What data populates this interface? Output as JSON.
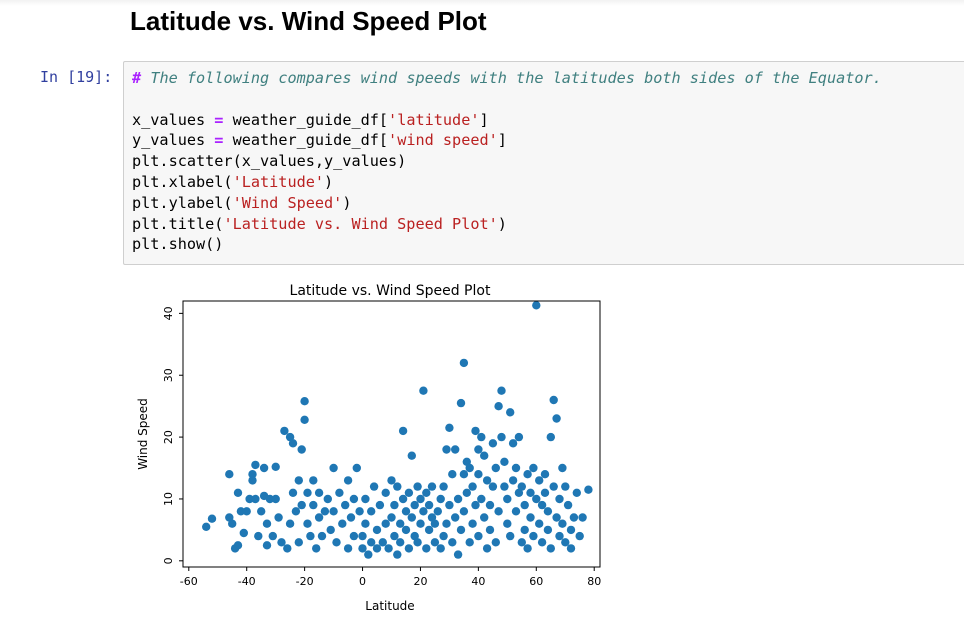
{
  "notebook": {
    "heading": "Latitude vs. Wind Speed Plot",
    "cell": {
      "prompt": "In [19]:",
      "comment_hash": "#",
      "comment_text": "The following compares wind speeds with the latitudes both sides of the Equator.",
      "lines": [
        {
          "a": "x_values ",
          "op": "=",
          "b": " weather_guide_df[",
          "s": "'latitude'",
          "c": "]"
        },
        {
          "a": "y_values ",
          "op": "=",
          "b": " weather_guide_df[",
          "s": "'wind speed'",
          "c": "]"
        },
        {
          "a": "plt.scatter(x_values,y_values)",
          "op": "",
          "b": "",
          "s": "",
          "c": ""
        },
        {
          "a": "plt.xlabel(",
          "op": "",
          "b": "",
          "s": "'Latitude'",
          "c": ")"
        },
        {
          "a": "plt.ylabel(",
          "op": "",
          "b": "",
          "s": "'Wind Speed'",
          "c": ")"
        },
        {
          "a": "plt.title(",
          "op": "",
          "b": "",
          "s": "'Latitude vs. Wind Speed Plot'",
          "c": ")"
        },
        {
          "a": "plt.show()",
          "op": "",
          "b": "",
          "s": "",
          "c": ""
        }
      ]
    }
  },
  "colors": {
    "point": "#1f77b4",
    "axis": "#000000"
  },
  "chart_data": {
    "type": "scatter",
    "title": "Latitude vs. Wind Speed Plot",
    "xlabel": "Latitude",
    "ylabel": "Wind Speed",
    "xlim": [
      -62,
      82
    ],
    "ylim": [
      -1,
      42
    ],
    "xticks": [
      -60,
      -40,
      -20,
      0,
      20,
      40,
      60,
      80
    ],
    "yticks": [
      0,
      10,
      20,
      30,
      40
    ],
    "grid": false,
    "series": [
      {
        "name": "",
        "points": [
          [
            -54,
            5.5
          ],
          [
            -52,
            6.8
          ],
          [
            -46,
            14
          ],
          [
            -46,
            7
          ],
          [
            -45,
            6
          ],
          [
            -44,
            2
          ],
          [
            -43,
            2.5
          ],
          [
            -43,
            11
          ],
          [
            -42,
            8
          ],
          [
            -41,
            4.5
          ],
          [
            -40,
            8
          ],
          [
            -39,
            10
          ],
          [
            -38,
            14
          ],
          [
            -38,
            13
          ],
          [
            -37,
            15.5
          ],
          [
            -37,
            10
          ],
          [
            -36,
            4
          ],
          [
            -35,
            8
          ],
          [
            -34,
            15
          ],
          [
            -34,
            10.5
          ],
          [
            -33,
            6
          ],
          [
            -33,
            2.5
          ],
          [
            -32,
            10
          ],
          [
            -31,
            4
          ],
          [
            -30,
            15.2
          ],
          [
            -30,
            10
          ],
          [
            -29,
            7
          ],
          [
            -28,
            3
          ],
          [
            -27,
            21
          ],
          [
            -26,
            2
          ],
          [
            -25,
            6
          ],
          [
            -25,
            20
          ],
          [
            -24,
            19
          ],
          [
            -24,
            11
          ],
          [
            -23,
            8
          ],
          [
            -22,
            13
          ],
          [
            -22,
            3
          ],
          [
            -21,
            18
          ],
          [
            -21,
            9
          ],
          [
            -20,
            25.8
          ],
          [
            -20,
            22.8
          ],
          [
            -19,
            6
          ],
          [
            -19,
            11
          ],
          [
            -18,
            4
          ],
          [
            -17,
            13
          ],
          [
            -17,
            9
          ],
          [
            -16,
            2
          ],
          [
            -15,
            7
          ],
          [
            -15,
            11
          ],
          [
            -14,
            4
          ],
          [
            -13,
            8
          ],
          [
            -12,
            10
          ],
          [
            -11,
            5
          ],
          [
            -10,
            15
          ],
          [
            -10,
            8
          ],
          [
            -9,
            3
          ],
          [
            -8,
            11
          ],
          [
            -7,
            6
          ],
          [
            -6,
            9
          ],
          [
            -5,
            13
          ],
          [
            -5,
            2
          ],
          [
            -4,
            7
          ],
          [
            -3,
            4
          ],
          [
            -3,
            10
          ],
          [
            -2,
            15
          ],
          [
            -1,
            8
          ],
          [
            0,
            4
          ],
          [
            0,
            2
          ],
          [
            1,
            6
          ],
          [
            1,
            10
          ],
          [
            2,
            1
          ],
          [
            3,
            3
          ],
          [
            3,
            8
          ],
          [
            4,
            12
          ],
          [
            5,
            5
          ],
          [
            5,
            2
          ],
          [
            6,
            9
          ],
          [
            7,
            3
          ],
          [
            8,
            6
          ],
          [
            8,
            11
          ],
          [
            9,
            2
          ],
          [
            10,
            7
          ],
          [
            10,
            13
          ],
          [
            11,
            4
          ],
          [
            11,
            9
          ],
          [
            12,
            12
          ],
          [
            12,
            1
          ],
          [
            13,
            6
          ],
          [
            13,
            3
          ],
          [
            14,
            10
          ],
          [
            14,
            21
          ],
          [
            15,
            5
          ],
          [
            15,
            8
          ],
          [
            16,
            2
          ],
          [
            16,
            11
          ],
          [
            17,
            7
          ],
          [
            17,
            17
          ],
          [
            18,
            4
          ],
          [
            18,
            9
          ],
          [
            19,
            12
          ],
          [
            19,
            3
          ],
          [
            20,
            6
          ],
          [
            20,
            10
          ],
          [
            21,
            27.5
          ],
          [
            21,
            8
          ],
          [
            22,
            2
          ],
          [
            22,
            11
          ],
          [
            23,
            5
          ],
          [
            23,
            9
          ],
          [
            24,
            7
          ],
          [
            24,
            12
          ],
          [
            25,
            3
          ],
          [
            25,
            6
          ],
          [
            26,
            8
          ],
          [
            27,
            10
          ],
          [
            27,
            2
          ],
          [
            28,
            4
          ],
          [
            28,
            12
          ],
          [
            29,
            6
          ],
          [
            29,
            18
          ],
          [
            30,
            9
          ],
          [
            30,
            21.5
          ],
          [
            31,
            3
          ],
          [
            31,
            14
          ],
          [
            32,
            18
          ],
          [
            32,
            7
          ],
          [
            33,
            10
          ],
          [
            33,
            1
          ],
          [
            34,
            5
          ],
          [
            34,
            25.5
          ],
          [
            35,
            14
          ],
          [
            35,
            32
          ],
          [
            35,
            8
          ],
          [
            36,
            16
          ],
          [
            36,
            11
          ],
          [
            37,
            15
          ],
          [
            37,
            3
          ],
          [
            38,
            12
          ],
          [
            38,
            6
          ],
          [
            39,
            21
          ],
          [
            39,
            9
          ],
          [
            40,
            18
          ],
          [
            40,
            14
          ],
          [
            40,
            4
          ],
          [
            41,
            20
          ],
          [
            41,
            10
          ],
          [
            42,
            17
          ],
          [
            42,
            7
          ],
          [
            43,
            2
          ],
          [
            43,
            13
          ],
          [
            44,
            9
          ],
          [
            44,
            5
          ],
          [
            45,
            19
          ],
          [
            45,
            12
          ],
          [
            46,
            15
          ],
          [
            46,
            3
          ],
          [
            47,
            25
          ],
          [
            47,
            8
          ],
          [
            48,
            27.5
          ],
          [
            48,
            20
          ],
          [
            49,
            12
          ],
          [
            49,
            16
          ],
          [
            50,
            6
          ],
          [
            50,
            10
          ],
          [
            51,
            24
          ],
          [
            51,
            4
          ],
          [
            52,
            19
          ],
          [
            52,
            13
          ],
          [
            53,
            8
          ],
          [
            53,
            15
          ],
          [
            54,
            11
          ],
          [
            54,
            20
          ],
          [
            55,
            3
          ],
          [
            55,
            12
          ],
          [
            56,
            9
          ],
          [
            56,
            5
          ],
          [
            57,
            14
          ],
          [
            57,
            2
          ],
          [
            58,
            11
          ],
          [
            58,
            7
          ],
          [
            59,
            15
          ],
          [
            59,
            4
          ],
          [
            60,
            41.3
          ],
          [
            60,
            10
          ],
          [
            61,
            13
          ],
          [
            61,
            6
          ],
          [
            62,
            9
          ],
          [
            62,
            3
          ],
          [
            63,
            14
          ],
          [
            63,
            11
          ],
          [
            64,
            5
          ],
          [
            64,
            8
          ],
          [
            65,
            20
          ],
          [
            65,
            2
          ],
          [
            66,
            26
          ],
          [
            66,
            12
          ],
          [
            67,
            23
          ],
          [
            67,
            7
          ],
          [
            68,
            10
          ],
          [
            68,
            4
          ],
          [
            69,
            15
          ],
          [
            69,
            6
          ],
          [
            70,
            12
          ],
          [
            70,
            3
          ],
          [
            71,
            9
          ],
          [
            72,
            5
          ],
          [
            72,
            2
          ],
          [
            73,
            7
          ],
          [
            74,
            11
          ],
          [
            75,
            4
          ],
          [
            76,
            7
          ],
          [
            78,
            11.5
          ]
        ]
      }
    ]
  }
}
